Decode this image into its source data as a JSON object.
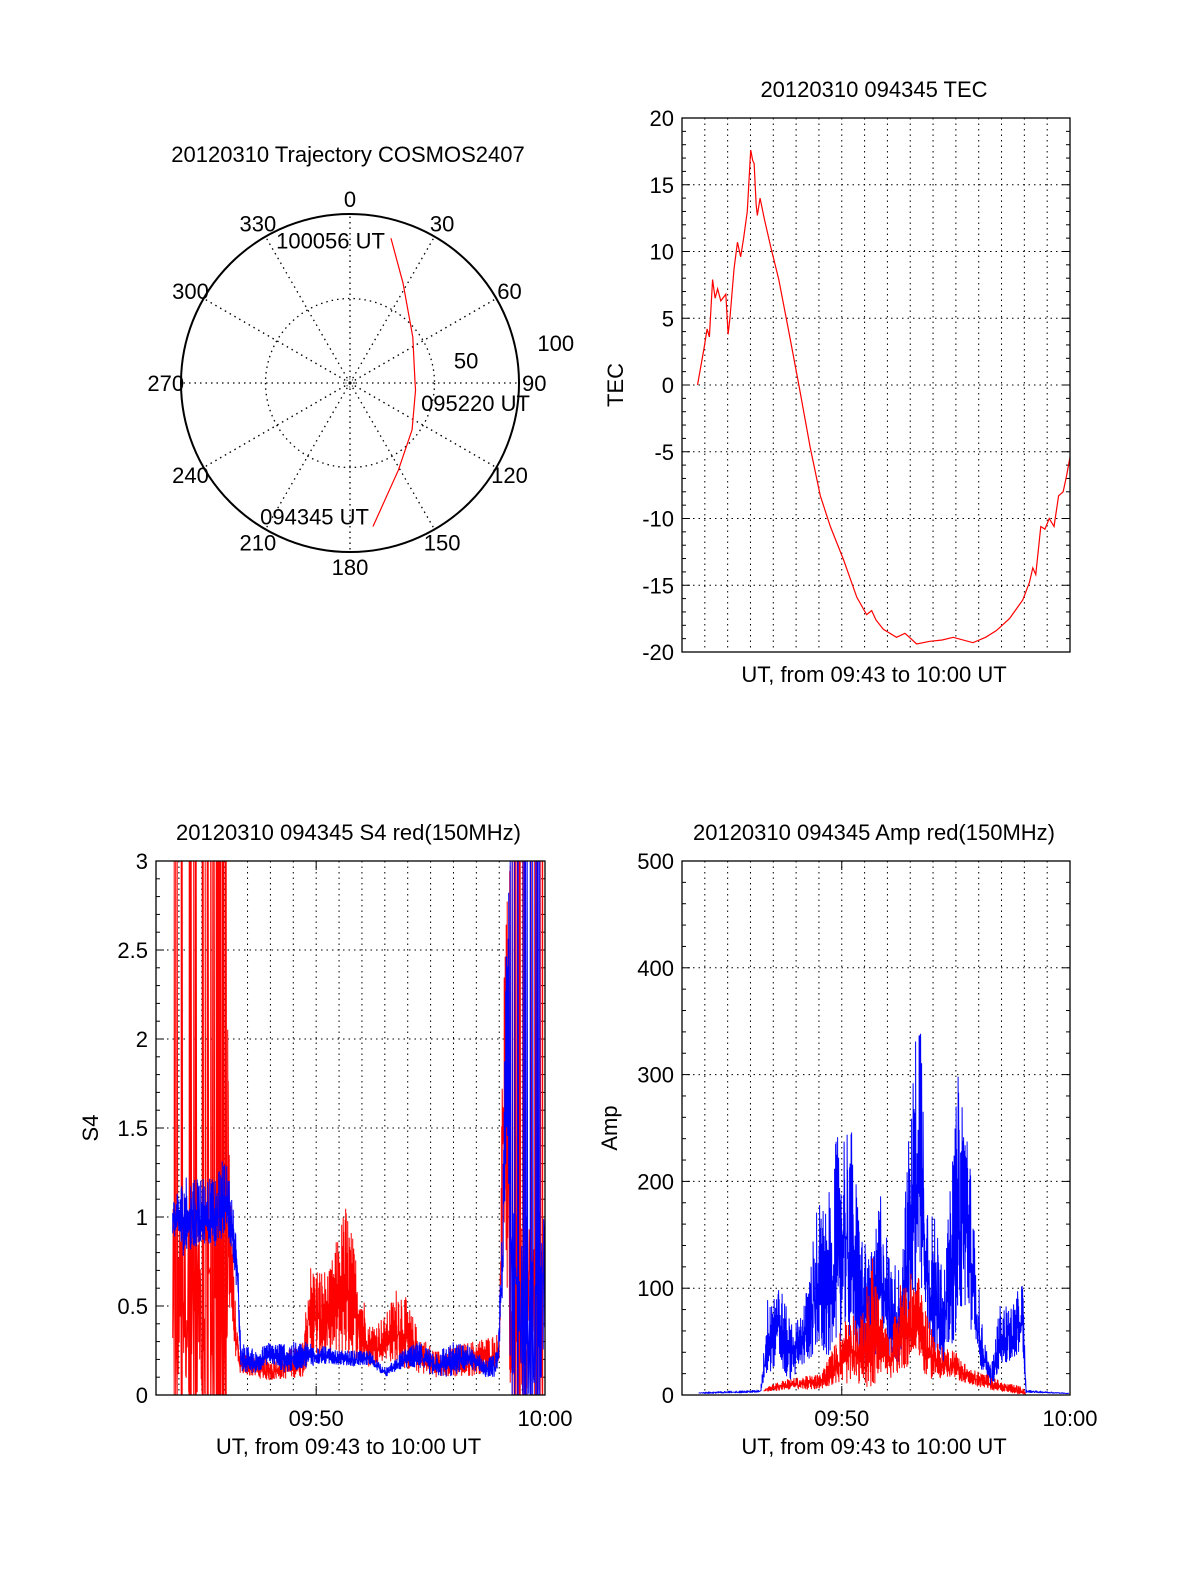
{
  "chart_data": [
    {
      "type": "polar",
      "title": "20120310 Trajectory COSMOS2407",
      "azimuth_labels": [
        "0",
        "30",
        "60",
        "90",
        "120",
        "150",
        "180",
        "210",
        "240",
        "270",
        "300",
        "330"
      ],
      "radial_labels": [
        "50",
        "100"
      ],
      "radial_range": [
        0,
        100
      ],
      "trajectory": {
        "color": "#ff0000",
        "points_az_r": [
          [
            170.9,
            86
          ],
          [
            151,
            59
          ],
          [
            127,
            46
          ],
          [
            96,
            39
          ],
          [
            90,
            38.5
          ],
          [
            53.9,
            46
          ],
          [
            27.9,
            67
          ],
          [
            15.8,
            89
          ]
        ],
        "start_label": "094345 UT",
        "mid_label": "095220 UT",
        "end_label": "100056 UT"
      }
    },
    {
      "type": "line",
      "title": "20120310 094345 TEC",
      "xlabel": "UT, from 09:43 to 10:00 UT",
      "ylabel": "TEC",
      "xlim_minutes_after_0943": [
        0,
        17
      ],
      "ylim": [
        -20,
        20
      ],
      "yticks": [
        "-20",
        "-15",
        "-10",
        "-5",
        "0",
        "5",
        "10",
        "15",
        "20"
      ],
      "grid": true,
      "series": [
        {
          "name": "TEC",
          "color": "#ff0000",
          "points": [
            [
              0.68,
              0
            ],
            [
              0.97,
              2.8
            ],
            [
              1.1,
              4.2
            ],
            [
              1.2,
              3.6
            ],
            [
              1.34,
              7.9
            ],
            [
              1.45,
              6.5
            ],
            [
              1.56,
              7.2
            ],
            [
              1.7,
              6.3
            ],
            [
              1.92,
              6.8
            ],
            [
              2.02,
              3.8
            ],
            [
              2.1,
              5
            ],
            [
              2.28,
              8.7
            ],
            [
              2.43,
              10.7
            ],
            [
              2.57,
              9.6
            ],
            [
              2.7,
              11
            ],
            [
              2.86,
              13
            ],
            [
              3.01,
              17.6
            ],
            [
              3.1,
              16.8
            ],
            [
              3.16,
              16.6
            ],
            [
              3.25,
              13.5
            ],
            [
              3.3,
              12.7
            ],
            [
              3.42,
              14
            ],
            [
              3.6,
              12.5
            ],
            [
              3.88,
              10.4
            ],
            [
              4.24,
              7.9
            ],
            [
              4.68,
              4
            ],
            [
              5.12,
              0
            ],
            [
              5.62,
              -4.7
            ],
            [
              6.06,
              -8.3
            ],
            [
              6.5,
              -10.6
            ],
            [
              7.08,
              -13.1
            ],
            [
              7.66,
              -15.9
            ],
            [
              8.09,
              -17.2
            ],
            [
              8.31,
              -16.9
            ],
            [
              8.5,
              -17.6
            ],
            [
              8.82,
              -18.3
            ],
            [
              9.4,
              -18.9
            ],
            [
              9.77,
              -18.6
            ],
            [
              10.28,
              -19.4
            ],
            [
              10.86,
              -19.2
            ],
            [
              11.4,
              -19.1
            ],
            [
              11.88,
              -18.9
            ],
            [
              12.75,
              -19.3
            ],
            [
              13.3,
              -18.9
            ],
            [
              13.77,
              -18.4
            ],
            [
              14.35,
              -17.5
            ],
            [
              14.93,
              -16.1
            ],
            [
              15.22,
              -14.8
            ],
            [
              15.37,
              -13.7
            ],
            [
              15.5,
              -14.2
            ],
            [
              15.72,
              -10.6
            ],
            [
              15.9,
              -10.8
            ],
            [
              16.09,
              -10
            ],
            [
              16.3,
              -10.6
            ],
            [
              16.5,
              -8.3
            ],
            [
              16.7,
              -8
            ],
            [
              16.85,
              -6.8
            ],
            [
              17,
              -5.4
            ]
          ]
        }
      ]
    },
    {
      "type": "line",
      "title": "20120310 094345 S4 red(150MHz)",
      "xlabel": "UT, from 09:43 to 10:00 UT",
      "ylabel": "S4",
      "xlim_minutes_after_0943": [
        0,
        17
      ],
      "xticks": [
        {
          "t": 7,
          "label": "09:50"
        },
        {
          "t": 17,
          "label": "10:00"
        }
      ],
      "ylim": [
        0,
        3
      ],
      "yticks": [
        "0",
        "0.5",
        "1",
        "1.5",
        "2",
        "2.5",
        "3"
      ],
      "grid": true,
      "series": [
        {
          "name": "red",
          "color": "#ff0000",
          "band_t_low_high": [
            [
              0.73,
              0,
              3
            ],
            [
              1.5,
              0,
              3
            ],
            [
              2.5,
              0,
              3
            ],
            [
              3.1,
              0,
              3
            ],
            [
              3.2,
              0.5,
              1.5
            ],
            [
              3.42,
              0.25,
              0.6
            ],
            [
              3.64,
              0.12,
              0.25
            ],
            [
              4.95,
              0.08,
              0.2
            ],
            [
              6.41,
              0.1,
              0.3
            ],
            [
              6.7,
              0.2,
              0.75
            ],
            [
              7.57,
              0.2,
              0.7
            ],
            [
              8.3,
              0.2,
              1.1
            ],
            [
              8.73,
              0.2,
              0.8
            ],
            [
              9.32,
              0.15,
              0.4
            ],
            [
              10.04,
              0.2,
              0.45
            ],
            [
              10.62,
              0.15,
              0.65
            ],
            [
              11.5,
              0.12,
              0.35
            ],
            [
              12.23,
              0.1,
              0.25
            ],
            [
              13.68,
              0.1,
              0.3
            ],
            [
              14.99,
              0.15,
              0.35
            ],
            [
              15.2,
              1.0,
              2.6
            ],
            [
              15.5,
              0,
              3
            ],
            [
              16.9,
              0,
              3
            ]
          ]
        },
        {
          "name": "blue",
          "color": "#0000ff",
          "band_t_low_high": [
            [
              0.73,
              0.9,
              1.1
            ],
            [
              1.31,
              0.75,
              1.25
            ],
            [
              2.04,
              0.85,
              1.25
            ],
            [
              2.62,
              0.8,
              1.2
            ],
            [
              2.98,
              0.9,
              1.38
            ],
            [
              3.35,
              0.8,
              1.1
            ],
            [
              3.57,
              0.5,
              0.8
            ],
            [
              3.71,
              0.12,
              0.3
            ],
            [
              4.37,
              0.12,
              0.25
            ],
            [
              4.95,
              0.18,
              0.3
            ],
            [
              5.68,
              0.12,
              0.3
            ],
            [
              6.41,
              0.15,
              0.3
            ],
            [
              7.13,
              0.17,
              0.3
            ],
            [
              7.86,
              0.17,
              0.25
            ],
            [
              8.59,
              0.16,
              0.25
            ],
            [
              9.32,
              0.17,
              0.25
            ],
            [
              10.04,
              0.1,
              0.15
            ],
            [
              10.77,
              0.15,
              0.25
            ],
            [
              11.5,
              0.15,
              0.3
            ],
            [
              12.23,
              0.1,
              0.25
            ],
            [
              12.95,
              0.1,
              0.3
            ],
            [
              13.68,
              0.15,
              0.28
            ],
            [
              14.41,
              0.1,
              0.2
            ],
            [
              14.92,
              0.1,
              0.25
            ],
            [
              15.14,
              0.5,
              1.0
            ],
            [
              15.36,
              1.5,
              3
            ],
            [
              15.5,
              0,
              3
            ],
            [
              17,
              0,
              3
            ]
          ]
        }
      ]
    },
    {
      "type": "line",
      "title": "20120310 094345 Amp red(150MHz)",
      "xlabel": "UT, from 09:43 to 10:00 UT",
      "ylabel": "Amp",
      "xlim_minutes_after_0943": [
        0,
        17
      ],
      "xticks": [
        {
          "t": 7,
          "label": "09:50"
        },
        {
          "t": 17,
          "label": "10:00"
        }
      ],
      "ylim": [
        0,
        500
      ],
      "yticks": [
        "0",
        "100",
        "200",
        "300",
        "400",
        "500"
      ],
      "grid": true,
      "series": [
        {
          "name": "blue",
          "color": "#0000ff",
          "band_t_low_high": [
            [
              0.75,
              1,
              3
            ],
            [
              3.44,
              2,
              5
            ],
            [
              3.8,
              20,
              105
            ],
            [
              4.24,
              30,
              110
            ],
            [
              4.6,
              10,
              80
            ],
            [
              5.04,
              20,
              70
            ],
            [
              5.48,
              30,
              100
            ],
            [
              5.92,
              40,
              185
            ],
            [
              6.35,
              30,
              175
            ],
            [
              6.79,
              50,
              245
            ],
            [
              7.37,
              50,
              265
            ],
            [
              7.8,
              30,
              160
            ],
            [
              8.39,
              30,
              130
            ],
            [
              8.68,
              50,
              200
            ],
            [
              9.11,
              20,
              130
            ],
            [
              9.55,
              30,
              120
            ],
            [
              9.99,
              60,
              260
            ],
            [
              10.42,
              100,
              400
            ],
            [
              10.71,
              50,
              200
            ],
            [
              11.15,
              30,
              160
            ],
            [
              11.58,
              30,
              140
            ],
            [
              12.09,
              60,
              300
            ],
            [
              12.46,
              80,
              280
            ],
            [
              12.82,
              40,
              150
            ],
            [
              13.18,
              20,
              60
            ],
            [
              13.55,
              5,
              25
            ],
            [
              13.91,
              25,
              85
            ],
            [
              14.49,
              30,
              85
            ],
            [
              14.93,
              40,
              110
            ],
            [
              15.07,
              2,
              5
            ],
            [
              16.96,
              1,
              2
            ]
          ]
        },
        {
          "name": "red",
          "color": "#ff0000",
          "band_t_low_high": [
            [
              3.59,
              2,
              8
            ],
            [
              4.6,
              5,
              15
            ],
            [
              6.06,
              5,
              20
            ],
            [
              6.64,
              10,
              45
            ],
            [
              7.37,
              10,
              85
            ],
            [
              7.8,
              10,
              70
            ],
            [
              8.39,
              5,
              135
            ],
            [
              8.68,
              20,
              85
            ],
            [
              9.11,
              15,
              50
            ],
            [
              9.55,
              20,
              105
            ],
            [
              10.06,
              30,
              115
            ],
            [
              10.28,
              40,
              120
            ],
            [
              10.71,
              15,
              80
            ],
            [
              11.29,
              15,
              45
            ],
            [
              11.87,
              15,
              45
            ],
            [
              12.6,
              10,
              25
            ],
            [
              13.33,
              5,
              20
            ],
            [
              14.06,
              3,
              12
            ],
            [
              14.93,
              0,
              8
            ],
            [
              15.05,
              0,
              2
            ]
          ]
        }
      ]
    }
  ]
}
